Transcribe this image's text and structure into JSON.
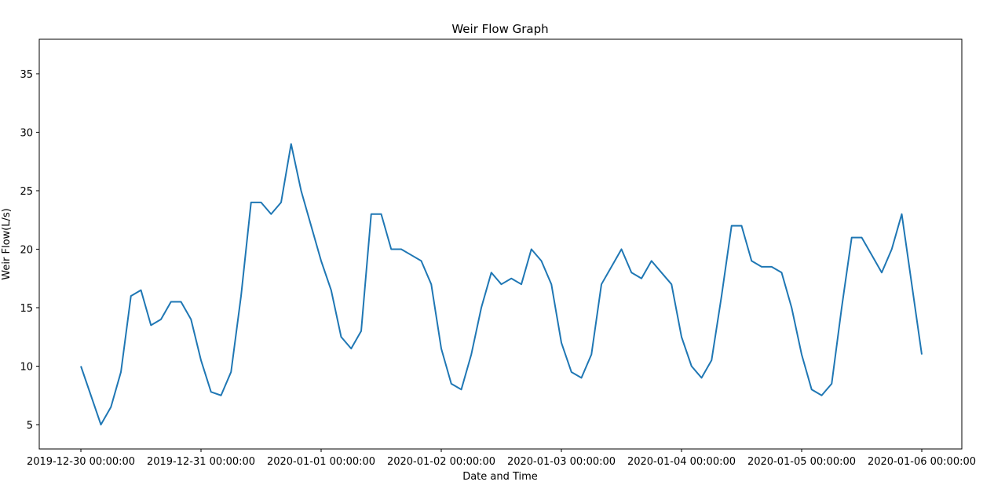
{
  "chart_data": {
    "type": "line",
    "title": "Weir Flow Graph",
    "x_label": "Date and Time",
    "y_label": "Weir Flow(L/s)",
    "x": [
      "2019-12-30 00:00:00",
      "2019-12-30 02:00:00",
      "2019-12-30 04:00:00",
      "2019-12-30 06:00:00",
      "2019-12-30 08:00:00",
      "2019-12-30 10:00:00",
      "2019-12-30 12:00:00",
      "2019-12-30 14:00:00",
      "2019-12-30 16:00:00",
      "2019-12-30 18:00:00",
      "2019-12-30 20:00:00",
      "2019-12-30 22:00:00",
      "2019-12-31 00:00:00",
      "2019-12-31 02:00:00",
      "2019-12-31 04:00:00",
      "2019-12-31 06:00:00",
      "2019-12-31 08:00:00",
      "2019-12-31 10:00:00",
      "2019-12-31 12:00:00",
      "2019-12-31 14:00:00",
      "2019-12-31 16:00:00",
      "2019-12-31 18:00:00",
      "2019-12-31 20:00:00",
      "2019-12-31 22:00:00",
      "2020-01-01 00:00:00",
      "2020-01-01 02:00:00",
      "2020-01-01 04:00:00",
      "2020-01-01 06:00:00",
      "2020-01-01 08:00:00",
      "2020-01-01 10:00:00",
      "2020-01-01 12:00:00",
      "2020-01-01 14:00:00",
      "2020-01-01 16:00:00",
      "2020-01-01 18:00:00",
      "2020-01-01 20:00:00",
      "2020-01-01 22:00:00",
      "2020-01-02 00:00:00",
      "2020-01-02 02:00:00",
      "2020-01-02 04:00:00",
      "2020-01-02 06:00:00",
      "2020-01-02 08:00:00",
      "2020-01-02 10:00:00",
      "2020-01-02 12:00:00",
      "2020-01-02 14:00:00",
      "2020-01-02 16:00:00",
      "2020-01-02 18:00:00",
      "2020-01-02 20:00:00",
      "2020-01-02 22:00:00",
      "2020-01-03 00:00:00",
      "2020-01-03 02:00:00",
      "2020-01-03 04:00:00",
      "2020-01-03 06:00:00",
      "2020-01-03 08:00:00",
      "2020-01-03 10:00:00",
      "2020-01-03 12:00:00",
      "2020-01-03 14:00:00",
      "2020-01-03 16:00:00",
      "2020-01-03 18:00:00",
      "2020-01-03 20:00:00",
      "2020-01-03 22:00:00",
      "2020-01-04 00:00:00",
      "2020-01-04 02:00:00",
      "2020-01-04 04:00:00",
      "2020-01-04 06:00:00",
      "2020-01-04 08:00:00",
      "2020-01-04 10:00:00",
      "2020-01-04 12:00:00",
      "2020-01-04 14:00:00",
      "2020-01-04 16:00:00",
      "2020-01-04 18:00:00",
      "2020-01-04 20:00:00",
      "2020-01-04 22:00:00",
      "2020-01-05 00:00:00",
      "2020-01-05 02:00:00",
      "2020-01-05 04:00:00",
      "2020-01-05 06:00:00",
      "2020-01-05 08:00:00",
      "2020-01-05 10:00:00",
      "2020-01-05 12:00:00",
      "2020-01-05 14:00:00",
      "2020-01-05 16:00:00",
      "2020-01-05 18:00:00",
      "2020-01-05 20:00:00",
      "2020-01-05 22:00:00",
      "2020-01-06 00:00:00"
    ],
    "series": [
      {
        "color": "#1f77b4",
        "values": [
          10,
          7.5,
          5,
          6.5,
          9.5,
          16,
          16.5,
          13.5,
          14,
          15.5,
          15.5,
          14,
          10.5,
          7.8,
          7.5,
          9.5,
          16,
          24,
          24,
          23,
          24,
          29,
          25,
          22,
          19,
          16.5,
          12.5,
          11.5,
          13,
          23,
          23,
          20,
          20,
          19.5,
          19,
          17,
          11.5,
          8.5,
          8,
          11,
          15,
          18,
          17,
          17.5,
          17,
          20,
          19,
          17,
          12,
          9.5,
          9,
          11,
          17,
          18.5,
          20,
          18,
          17.5,
          19,
          18,
          17,
          12.5,
          10,
          9,
          10.5,
          16,
          22,
          22,
          19,
          18.5,
          18.5,
          18,
          15,
          11,
          8,
          7.5,
          8.5,
          15,
          21,
          21,
          19.5,
          18,
          20,
          23,
          17,
          11
        ]
      }
    ],
    "xlim": [
      "2019-12-29 15:41:00",
      "2020-01-06 08:00:00"
    ],
    "xticks": [
      "2019-12-30 00:00:00",
      "2019-12-31 00:00:00",
      "2020-01-01 00:00:00",
      "2020-01-02 00:00:00",
      "2020-01-03 00:00:00",
      "2020-01-04 00:00:00",
      "2020-01-05 00:00:00",
      "2020-01-06 00:00:00"
    ],
    "ylim": [
      2.92,
      37.95
    ],
    "yticks": [
      5,
      10,
      15,
      20,
      25,
      30,
      35
    ],
    "grid": false
  }
}
